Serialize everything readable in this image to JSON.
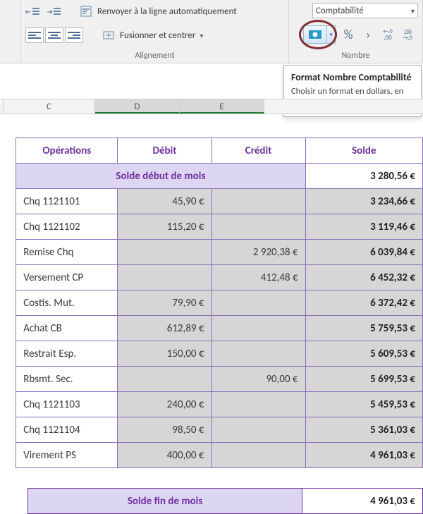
{
  "ribbon": {
    "number_format_value": "Comptabilité",
    "wrap_label": "Renvoyer à la ligne automatiquement",
    "merge_label": "Fusionner et centrer",
    "align_group_label": "Alignement",
    "number_group_label": "Nombre",
    "pct_sym": "%",
    "comma_sym": "›",
    "inc_dec": "←,0\n,00",
    "dec_inc": ",00\n→,0"
  },
  "tooltip": {
    "title": "Format Nombre Comptabilité",
    "body": "Choisir un format en dollars, en euros ou dans une autre devise."
  },
  "columns": {
    "c": "C",
    "d": "D",
    "e": "E"
  },
  "table": {
    "headers": {
      "op": "Opérations",
      "debit": "Débit",
      "credit": "Crédit",
      "solde": "Solde"
    },
    "start_label": "Solde début de mois",
    "start_solde": "3 280,56 €",
    "end_label": "Solde fin de mois",
    "end_solde": "4 961,03 €",
    "rows": [
      {
        "op": "Chq 1121101",
        "debit": "45,90 €",
        "credit": "",
        "solde": "3 234,66 €"
      },
      {
        "op": "Chq 1121102",
        "debit": "115,20 €",
        "credit": "",
        "solde": "3 119,46 €"
      },
      {
        "op": "Remise Chq",
        "debit": "",
        "credit": "2 920,38 €",
        "solde": "6 039,84 €"
      },
      {
        "op": "Versement CP",
        "debit": "",
        "credit": "412,48 €",
        "solde": "6 452,32 €"
      },
      {
        "op": "Costis. Mut.",
        "debit": "79,90 €",
        "credit": "",
        "solde": "6 372,42 €"
      },
      {
        "op": "Achat CB",
        "debit": "612,89 €",
        "credit": "",
        "solde": "5 759,53 €"
      },
      {
        "op": "Restrait Esp.",
        "debit": "150,00 €",
        "credit": "",
        "solde": "5 609,53 €"
      },
      {
        "op": "Rbsmt. Sec.",
        "debit": "",
        "credit": "90,00 €",
        "solde": "5 699,53 €"
      },
      {
        "op": "Chq 1121103",
        "debit": "240,00 €",
        "credit": "",
        "solde": "5 459,53 €"
      },
      {
        "op": "Chq 1121104",
        "debit": "98,50 €",
        "credit": "",
        "solde": "5 361,03 €"
      },
      {
        "op": "Virement PS",
        "debit": "400,00 €",
        "credit": "",
        "solde": "4 961,03 €"
      }
    ],
    "col_widths": {
      "op": 130,
      "debit": 120,
      "credit": 120,
      "solde": 150
    },
    "colors": {
      "accent": "#7030a0",
      "header_fill": "#ddd6f3",
      "num_fill": "#d6d6d6",
      "border": "#8a6fbc"
    }
  }
}
